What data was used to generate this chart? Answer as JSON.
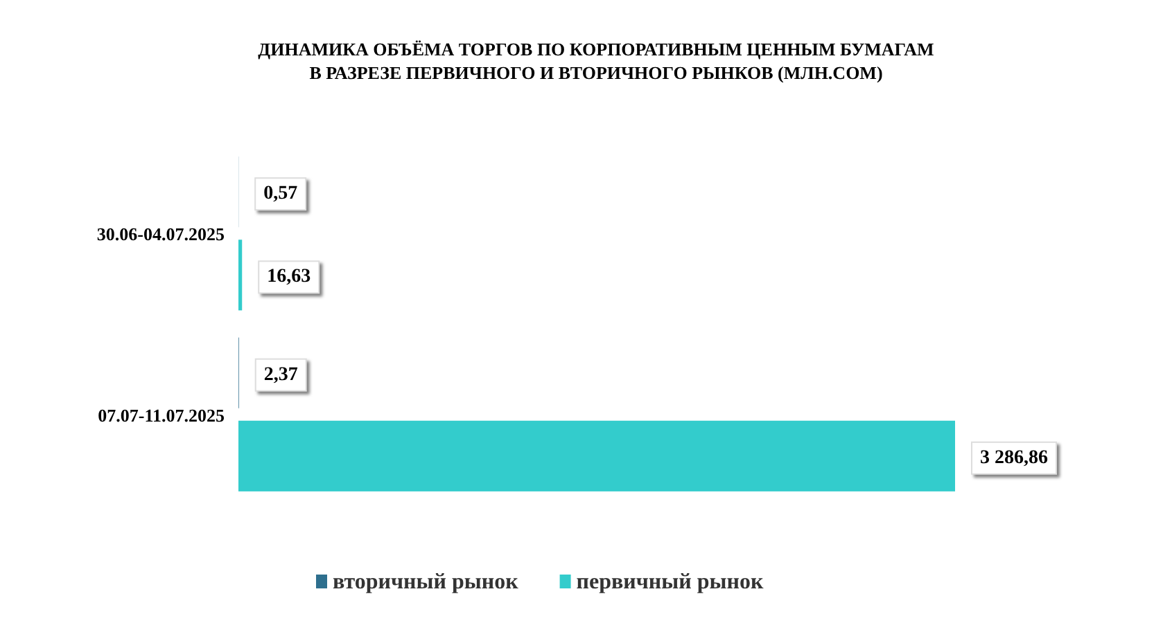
{
  "chart_data": {
    "type": "bar",
    "orientation": "horizontal",
    "title": "ДИНАМИКА ОБЪЁМА ТОРГОВ ПО КОРПОРАТИВНЫМ ЦЕННЫМ БУМАГАМ\nВ РАЗРЕЗЕ ПЕРВИЧНОГО И ВТОРИЧНОГО РЫНКОВ  (МЛН.СОМ)",
    "categories": [
      "30.06-04.07.2025",
      "07.07-11.07.2025"
    ],
    "series": [
      {
        "name": "вторичный рынок",
        "color": "#2e6f8e",
        "values": [
          0.57,
          2.37
        ],
        "value_labels": [
          "0,57",
          "2,37"
        ]
      },
      {
        "name": "первичный рынок",
        "color": "#33cccc",
        "values": [
          16.63,
          3286.86
        ],
        "value_labels": [
          "16,63",
          "3 286,86"
        ]
      }
    ],
    "legend": "bottom"
  }
}
